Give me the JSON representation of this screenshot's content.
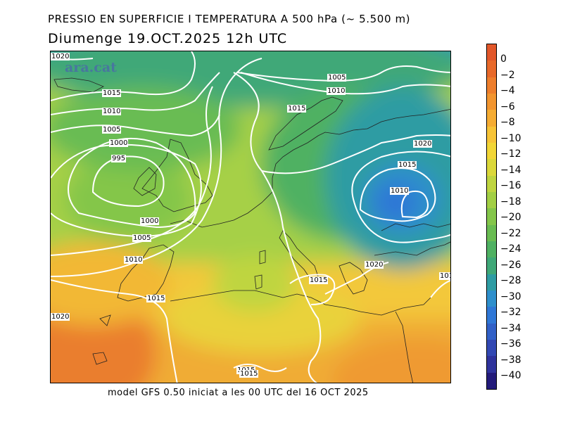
{
  "header": {
    "title": "PRESSIO EN SUPERFICIE I TEMPERATURA A 500 hPa (~ 5.500 m)",
    "date_line": "Diumenge  19.OCT.2025 12h UTC"
  },
  "footer": {
    "model_text": "model GFS 0.50 iniciat a les 00 UTC del 16 OCT 2025"
  },
  "logo": {
    "text": "ara.cat",
    "color": "#4a6fa5"
  },
  "colorbar": {
    "unit_variable": "temperature at 500 hPa",
    "labels": [
      "0",
      "−2",
      "−4",
      "−6",
      "−8",
      "−10",
      "−12",
      "−14",
      "−16",
      "−18",
      "−20",
      "−22",
      "−24",
      "−26",
      "−28",
      "−30",
      "−32",
      "−34",
      "−36",
      "−38",
      "−40"
    ],
    "colors": [
      "#e2572a",
      "#e8692a",
      "#ee7e2c",
      "#f2952f",
      "#f5ac33",
      "#f7c437",
      "#f2d636",
      "#dbd83a",
      "#bfd540",
      "#a2cf44",
      "#84c64a",
      "#69bc52",
      "#4fb162",
      "#3fa878",
      "#2e9ca3",
      "#2e8fcc",
      "#2f77d6",
      "#3160c7",
      "#3248b3",
      "#2f339c",
      "#231b7a"
    ]
  },
  "isobars": {
    "labels": [
      "1020",
      "1015",
      "1010",
      "1005",
      "1000",
      "995",
      "1000",
      "1005",
      "1010",
      "1015",
      "1020",
      "1005",
      "1010",
      "1015",
      "1020",
      "1015",
      "1010",
      "1020",
      "1015",
      "1015",
      "1015",
      "101"
    ]
  }
}
